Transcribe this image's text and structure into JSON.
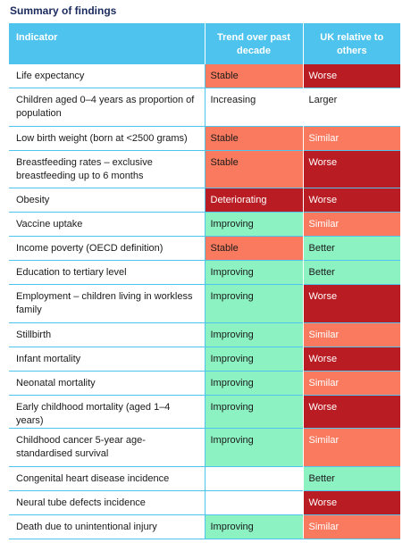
{
  "caption": "Summary of findings",
  "headers": [
    "Indicator",
    "Trend over past decade",
    "UK relative to others"
  ],
  "colors": {
    "header": "#4ec3ee",
    "Stable": "#f97a5e",
    "Increasing": "#ffffff",
    "Improving": "#8cf2c2",
    "Deteriorating": "#b91c22",
    "Worse": "#b91c22",
    "Similar": "#f97a5e",
    "Better": "#8cf2c2",
    "Larger": "#ffffff",
    "blank": "#ffffff"
  },
  "rows": [
    {
      "indicator": "Life expectancy",
      "trend": "Stable",
      "uk": "Worse"
    },
    {
      "indicator": "Children aged 0–4 years as proportion of population",
      "trend": "Increasing",
      "uk": "Larger"
    },
    {
      "indicator": "Low birth weight (born at <2500 grams)",
      "trend": "Stable",
      "uk": "Similar"
    },
    {
      "indicator": "Breastfeeding rates – exclusive breastfeeding up to 6 months",
      "trend": "Stable",
      "uk": "Worse"
    },
    {
      "indicator": "Obesity",
      "trend": "Deteriorating",
      "uk": "Worse"
    },
    {
      "indicator": "Vaccine uptake",
      "trend": "Improving",
      "uk": "Similar"
    },
    {
      "indicator": "Income poverty (OECD definition)",
      "trend": "Stable",
      "uk": "Better"
    },
    {
      "indicator": "Education to tertiary level",
      "trend": "Improving",
      "uk": "Better"
    },
    {
      "indicator": "Employment – children living in workless family",
      "trend": "Improving",
      "uk": "Worse"
    },
    {
      "indicator": "Stillbirth",
      "trend": "Improving",
      "uk": "Similar"
    },
    {
      "indicator": "Infant mortality",
      "trend": "Improving",
      "uk": "Worse"
    },
    {
      "indicator": "Neonatal mortality",
      "trend": "Improving",
      "uk": "Similar"
    },
    {
      "indicator": "Early childhood mortality (aged 1–4 years)",
      "trend": "Improving",
      "uk": "Worse"
    },
    {
      "indicator": "Childhood cancer 5-year age-standardised survival",
      "trend": "Improving",
      "uk": "Similar"
    },
    {
      "indicator": "Congenital heart disease incidence",
      "trend": "",
      "uk": "Better"
    },
    {
      "indicator": "Neural tube defects incidence",
      "trend": "",
      "uk": "Worse"
    },
    {
      "indicator": "Death due to unintentional injury",
      "trend": "Improving",
      "uk": "Similar"
    }
  ]
}
